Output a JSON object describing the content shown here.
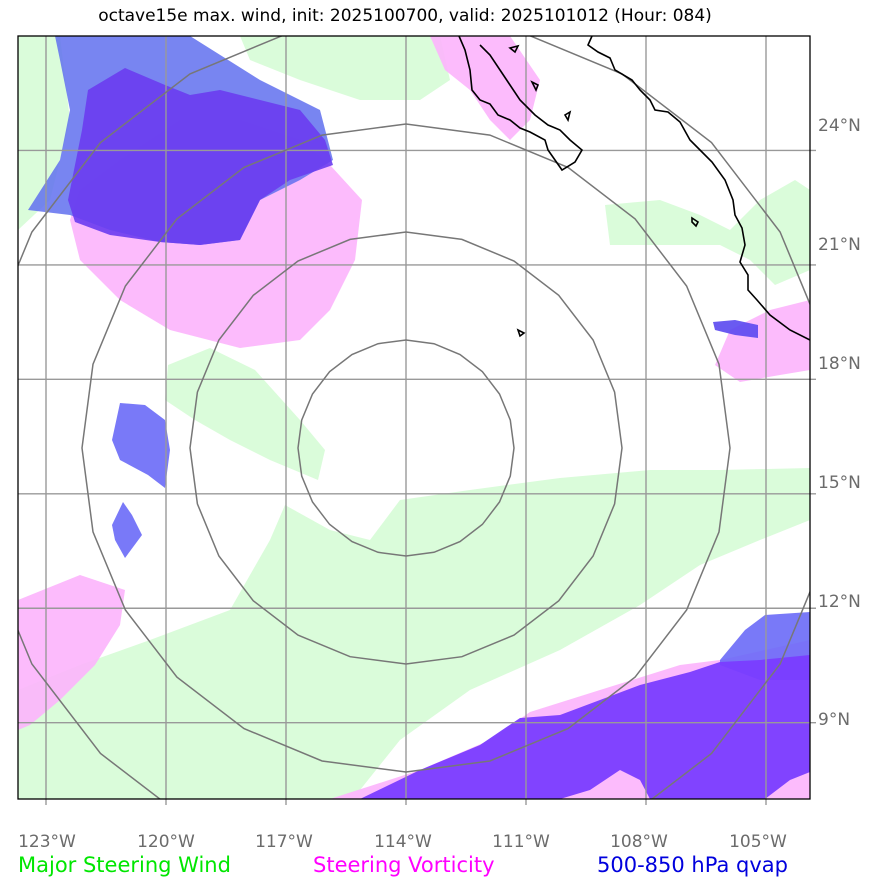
{
  "title": "octave15e max. wind, init: 2025100700, valid: 2025101012 (Hour: 084)",
  "map": {
    "lon_range": [
      -123.7,
      -103.9
    ],
    "lat_range": [
      7.0,
      27.0
    ],
    "lon_ticks": [
      {
        "value": -123,
        "label": "123°W"
      },
      {
        "value": -120,
        "label": "120°W"
      },
      {
        "value": -117,
        "label": "117°W"
      },
      {
        "value": -114,
        "label": "114°W"
      },
      {
        "value": -111,
        "label": "111°W"
      },
      {
        "value": -108,
        "label": "108°W"
      },
      {
        "value": -105,
        "label": "105°W"
      }
    ],
    "lat_ticks": [
      {
        "value": 24,
        "label": "24°N"
      },
      {
        "value": 21,
        "label": "21°N"
      },
      {
        "value": 18,
        "label": "18°N"
      },
      {
        "value": 15,
        "label": "15°N"
      },
      {
        "value": 12,
        "label": "12°N"
      },
      {
        "value": 9,
        "label": "9°N"
      }
    ],
    "storm_center": {
      "lon": -114.0,
      "lat": 16.2
    },
    "range_rings_deg": [
      2.7,
      5.4,
      8.1,
      10.8
    ],
    "colors": {
      "wind": "#ccffcc",
      "vorticity": "#ff9cff",
      "qvap_light": "#7070ff",
      "qvap_dark": "#6633ff",
      "grid": "#999999",
      "ring": "#777777",
      "coast": "#000000"
    }
  },
  "legend": {
    "wind": "Major Steering Wind",
    "vorticity": "Steering Vorticity",
    "qvap": "500-850 hPa qvap"
  }
}
